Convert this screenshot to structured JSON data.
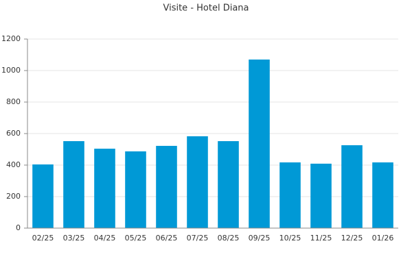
{
  "chart_data": {
    "type": "bar",
    "title": "Visite - Hotel Diana",
    "categories": [
      "02/25",
      "03/25",
      "04/25",
      "05/25",
      "06/25",
      "07/25",
      "08/25",
      "09/25",
      "10/25",
      "11/25",
      "12/25",
      "01/26"
    ],
    "values": [
      404,
      552,
      504,
      487,
      522,
      583,
      552,
      1070,
      417,
      409,
      526,
      417
    ],
    "color": "#0099d6",
    "ylim": [
      0,
      1200
    ],
    "yticks": [
      0,
      200,
      400,
      600,
      800,
      1000,
      1200
    ],
    "grid": true
  }
}
